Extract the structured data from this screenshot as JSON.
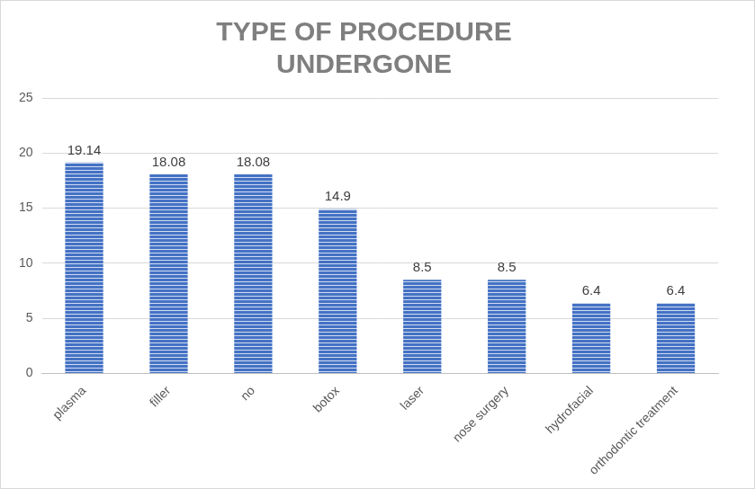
{
  "chart_data": {
    "type": "bar",
    "title": [
      "TYPE OF PROCEDURE",
      "UNDERGONE"
    ],
    "categories": [
      "plasma",
      "filler",
      "no",
      "botox",
      "laser",
      "nose surgery",
      "hydrofacial",
      "orthodontic treatment"
    ],
    "values": [
      19.14,
      18.08,
      18.08,
      14.9,
      8.5,
      8.5,
      6.4,
      6.4
    ],
    "color": "#4472c4",
    "ylim": [
      0,
      25
    ],
    "yticks": [
      0,
      5,
      10,
      15,
      20,
      25
    ],
    "grid": true,
    "data_labels": true
  }
}
